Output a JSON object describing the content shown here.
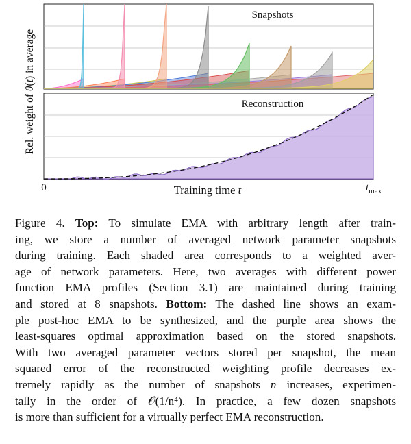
{
  "figure": {
    "y_axis_label": "Rel. weight of θ(t) in average",
    "top_panel_title": "Snapshots",
    "bottom_panel_title": "Reconstruction",
    "x_axis_label": "Training time t",
    "x_tick_start": "0",
    "x_tick_end": "t_max",
    "colors": {
      "profile_a": [
        "#5bc0de",
        "#f48fb1",
        "#f4a582",
        "#8c8c8c",
        "#66bd63",
        "#c49a6c",
        "#a0a0a0",
        "#e0cf6a"
      ],
      "profile_b": [
        "#ff66cc",
        "#ff7f50",
        "#c8c84a",
        "#4d79d6",
        "#d84a4a",
        "#aaaaaa",
        "#9d7bd8",
        "#e06b6b"
      ],
      "reconstruction_fill": "#c9b3e6",
      "reconstruction_line": "#8e6cc4"
    }
  },
  "caption": {
    "figure_label": "Figure 4.",
    "top_label": "Top:",
    "line1_rest": "To simulate EMA with arbitrary length after train-",
    "line2": "ing, we store a number of averaged network parameter snapshots",
    "line3": "during training. Each shaded area corresponds to a weighted aver-",
    "line4": "age of network parameters. Here, two averages with different power",
    "line5": "function EMA profiles (Section 3.1) are maintained during training",
    "line6_start": "and stored at 8 snapshots.",
    "bottom_label": "Bottom:",
    "line6_rest": "The dashed line shows an exam-",
    "line7": "ple post-hoc EMA to be synthesized, and the purple area shows the",
    "line8": "least-squares optimal approximation based on the stored snapshots.",
    "line9": "With two averaged parameter vectors stored per snapshot, the mean",
    "line10": "squared error of the reconstructed weighting profile decreases ex-",
    "line11_start": "tremely rapidly as the number of snapshots",
    "var_n": "n",
    "line11_rest": "increases, experimen-",
    "line12_start": "tally in the order of",
    "big_o": "𝒪(1/n⁴).",
    "line12_rest": "In practice, a few dozen snapshots",
    "line13": "is more than sufficient for a virtually perfect EMA reconstruction."
  }
}
